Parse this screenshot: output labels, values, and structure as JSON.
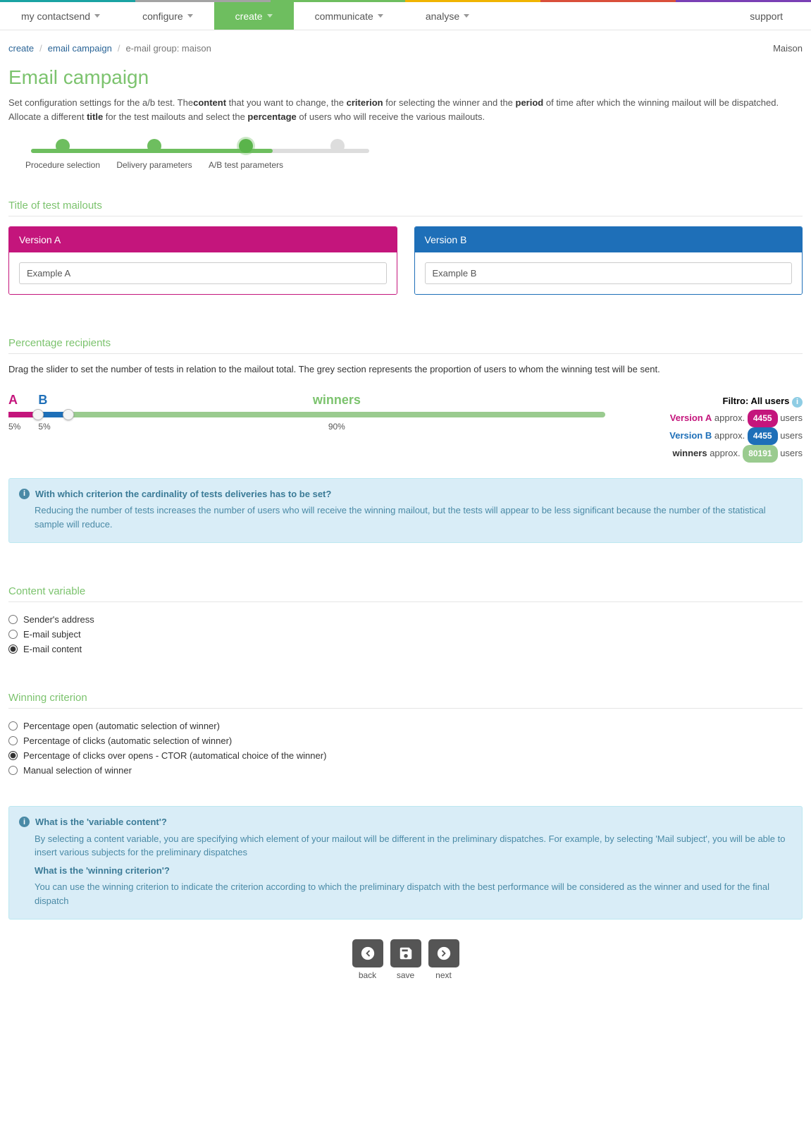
{
  "colors": {
    "green": "#6ebe5f",
    "greenLight": "#9acb8f",
    "magenta": "#c4157c",
    "blue": "#1e6fb8",
    "infoBg": "#d9edf7",
    "infoBorder": "#bce8f1",
    "infoText": "#4a8aa6",
    "stripe": [
      "#1aa3a3",
      "#a3a3a3",
      "#6ebe5f",
      "#f0b400",
      "#d94f3a",
      "#7a3fb5"
    ]
  },
  "nav": {
    "items": [
      {
        "label": "my contactsend",
        "active": false,
        "dropdown": true
      },
      {
        "label": "configure",
        "active": false,
        "dropdown": true
      },
      {
        "label": "create",
        "active": true,
        "dropdown": true
      },
      {
        "label": "communicate",
        "active": false,
        "dropdown": true
      },
      {
        "label": "analyse",
        "active": false,
        "dropdown": true
      }
    ],
    "support": "support"
  },
  "breadcrumb": {
    "items": [
      {
        "label": "create",
        "link": true
      },
      {
        "label": "email campaign",
        "link": true
      },
      {
        "label": "e-mail group: maison",
        "link": false
      }
    ],
    "account": "Maison"
  },
  "page": {
    "title": "Email campaign",
    "intro_parts": [
      "Set configuration settings for the a/b test. The",
      "content",
      " that you want to change, the ",
      "criterion",
      " for selecting the winner and the ",
      "period",
      " of time after which the winning mailout will be dispatched. Allocate a different ",
      "title",
      " for the test mailouts and select the ",
      "percentage",
      " of users who will receive the various mailouts."
    ]
  },
  "steps": {
    "items": [
      "Procedure selection",
      "Delivery parameters",
      "A/B test parameters",
      ""
    ],
    "completed": 3,
    "fill_pct": 66
  },
  "sections": {
    "title_mailouts": "Title of test mailouts",
    "pct_recipients": "Percentage recipients",
    "content_variable": "Content variable",
    "winning_criterion": "Winning criterion"
  },
  "versions": {
    "a": {
      "header": "Version A",
      "value": "Example A",
      "color": "#c4157c"
    },
    "b": {
      "header": "Version B",
      "value": "Example B",
      "color": "#1e6fb8"
    }
  },
  "percentage": {
    "description": "Drag the slider to set the number of tests in relation to the mailout total. The grey section represents the proportion of users to whom the winning test will be sent.",
    "labelA": "A",
    "labelB": "B",
    "labelWinners": "winners",
    "pctA": 5,
    "pctB": 5,
    "pctWinners": 90,
    "pctA_text": "5%",
    "pctB_text": "5%",
    "pctWinners_text": "90%"
  },
  "stats": {
    "filtro_label": "Filtro: All users",
    "rows": [
      {
        "label": "Version A",
        "word": "approx.",
        "badge": "4455",
        "suffix": "users",
        "cls": "vA",
        "pill": "#c4157c"
      },
      {
        "label": "Version B",
        "word": "approx.",
        "badge": "4455",
        "suffix": "users",
        "cls": "vB",
        "pill": "#1e6fb8"
      },
      {
        "label": "winners",
        "word": "approx.",
        "badge": "80191",
        "suffix": "users",
        "cls": "vW",
        "pill": "#9acb8f"
      }
    ]
  },
  "info1": {
    "question": "With which criterion the cardinality of tests deliveries has to be set?",
    "body": "Reducing the number of tests increases the number of users who will receive the winning mailout, but the tests will appear to be less significant because the number of the statistical sample will reduce."
  },
  "content_variable": {
    "options": [
      "Sender's address",
      "E-mail subject",
      "E-mail content"
    ],
    "selected": 2
  },
  "winning_criterion": {
    "options": [
      "Percentage open (automatic selection of winner)",
      "Percentage of clicks (automatic selection of winner)",
      "Percentage of clicks over opens - CTOR (automatical choice of the winner)",
      "Manual selection of winner"
    ],
    "selected": 2
  },
  "info2": {
    "q1": "What is the 'variable content'?",
    "a1": "By selecting a content variable, you are specifying which element of your mailout will be different in the preliminary dispatches. For example, by selecting 'Mail subject', you will be able to insert various subjects for the preliminary dispatches",
    "q2": "What is the 'winning criterion'?",
    "a2": "You can use the winning criterion to indicate the criterion according to which the preliminary dispatch with the best performance will be considered as the winner and used for the final dispatch"
  },
  "footer": {
    "back": "back",
    "save": "save",
    "next": "next"
  }
}
